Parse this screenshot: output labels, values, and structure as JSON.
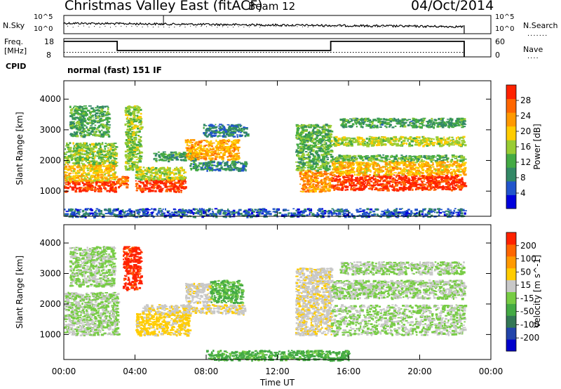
{
  "header": {
    "title": "Christmas Valley East (fitACF)",
    "beam": "Beam 12",
    "date": "04/Oct/2014"
  },
  "noise_panel": {
    "left_label": "N.Sky",
    "right_label": "N.Search",
    "left_ticks": [
      "10^5",
      "10^0"
    ],
    "right_ticks": [
      "10^5",
      "10^0"
    ]
  },
  "freq_panel": {
    "left_label_1": "Freq.",
    "left_label_2": "[MHz]",
    "right_label": "Nave",
    "left_ticks": [
      "18",
      "8"
    ],
    "right_ticks": [
      "60",
      "0"
    ]
  },
  "cpid": {
    "label": "CPID",
    "value": "normal (fast) 151 IF"
  },
  "chart_data": [
    {
      "type": "heatmap",
      "name": "power",
      "ylabel": "Slant Range [km]",
      "yticks": [
        1000,
        2000,
        3000,
        4000
      ],
      "ylim": [
        180,
        4600
      ],
      "colorbar_label": "Power [dB]",
      "colorbar_ticks": [
        "4",
        "8",
        "12",
        "16",
        "20",
        "24",
        "28"
      ],
      "colorbar_colors": [
        "#0000dd",
        "#2255cc",
        "#338866",
        "#44aa44",
        "#99cc33",
        "#ffcc00",
        "#ff9900",
        "#ff6600",
        "#ff2200"
      ],
      "colorbar_range": [
        0,
        32
      ],
      "bands": [
        {
          "t0": 0.0,
          "t1": 2.9,
          "r0": 1000,
          "r1": 1350,
          "v": 29
        },
        {
          "t0": 0.0,
          "t1": 2.9,
          "r0": 1350,
          "r1": 1900,
          "v": 20
        },
        {
          "t0": 0.0,
          "t1": 2.9,
          "r0": 1900,
          "r1": 2600,
          "v": 15
        },
        {
          "t0": 0.3,
          "t1": 2.5,
          "r0": 2800,
          "r1": 3800,
          "v": 12
        },
        {
          "t0": 2.9,
          "t1": 3.6,
          "r0": 1150,
          "r1": 1500,
          "v": 26
        },
        {
          "t0": 3.4,
          "t1": 4.3,
          "r0": 1700,
          "r1": 3800,
          "v": 15
        },
        {
          "t0": 4.0,
          "t1": 6.8,
          "r0": 1000,
          "r1": 1400,
          "v": 30
        },
        {
          "t0": 4.0,
          "t1": 6.8,
          "r0": 1400,
          "r1": 1800,
          "v": 17
        },
        {
          "t0": 5.0,
          "t1": 7.5,
          "r0": 2000,
          "r1": 2300,
          "v": 11
        },
        {
          "t0": 6.8,
          "t1": 9.8,
          "r0": 2050,
          "r1": 2700,
          "v": 22
        },
        {
          "t0": 7.0,
          "t1": 10.2,
          "r0": 1700,
          "r1": 2000,
          "v": 10
        },
        {
          "t0": 7.8,
          "t1": 10.3,
          "r0": 2800,
          "r1": 3200,
          "v": 8
        },
        {
          "t0": 13.2,
          "t1": 15.0,
          "r0": 1000,
          "r1": 1700,
          "v": 24
        },
        {
          "t0": 13.0,
          "t1": 15.0,
          "r0": 1700,
          "r1": 3200,
          "v": 13
        },
        {
          "t0": 15.0,
          "t1": 22.5,
          "r0": 1050,
          "r1": 1550,
          "v": 30
        },
        {
          "t0": 15.0,
          "t1": 22.5,
          "r0": 1550,
          "r1": 2000,
          "v": 21
        },
        {
          "t0": 15.0,
          "t1": 22.5,
          "r0": 2000,
          "r1": 2200,
          "v": 13
        },
        {
          "t0": 15.0,
          "t1": 22.5,
          "r0": 2500,
          "r1": 2800,
          "v": 17
        },
        {
          "t0": 15.5,
          "t1": 22.5,
          "r0": 3100,
          "r1": 3400,
          "v": 11
        },
        {
          "t0": 0.0,
          "t1": 22.5,
          "r0": 180,
          "r1": 450,
          "v": 6
        }
      ]
    },
    {
      "type": "heatmap",
      "name": "velocity",
      "xlabel": "Time UT",
      "ylabel": "Slant Range [km]",
      "xticks": [
        "00:00",
        "04:00",
        "08:00",
        "12:00",
        "16:00",
        "20:00",
        "00:00"
      ],
      "yticks": [
        1000,
        2000,
        3000,
        4000
      ],
      "ylim": [
        180,
        4600
      ],
      "colorbar_label": "Velocity [m s^-1]",
      "colorbar_ticks": [
        "200",
        "100",
        "50",
        "15",
        "-15",
        "-50",
        "-100",
        "-200"
      ],
      "colorbar_colors": [
        "#0000cc",
        "#2244aa",
        "#337755",
        "#44aa44",
        "#77cc44",
        "#c8c8c8",
        "#ffcc00",
        "#ff9900",
        "#ff6600",
        "#ff2200"
      ],
      "colorbar_range": [
        -250,
        250
      ],
      "bands": [
        {
          "t0": 0.0,
          "t1": 3.0,
          "r0": 1000,
          "r1": 2400,
          "v": 0
        },
        {
          "t0": 0.3,
          "t1": 2.8,
          "r0": 2600,
          "r1": 3900,
          "v": -5
        },
        {
          "t0": 3.3,
          "t1": 4.3,
          "r0": 2500,
          "r1": 3900,
          "v": 220
        },
        {
          "t0": 4.0,
          "t1": 7.0,
          "r0": 1000,
          "r1": 1700,
          "v": 70
        },
        {
          "t0": 4.3,
          "t1": 10.2,
          "r0": 1700,
          "r1": 2000,
          "v": 45
        },
        {
          "t0": 6.8,
          "t1": 8.2,
          "r0": 2050,
          "r1": 2700,
          "v": 30
        },
        {
          "t0": 8.2,
          "t1": 10.0,
          "r0": 2050,
          "r1": 2800,
          "v": -60
        },
        {
          "t0": 13.0,
          "t1": 15.0,
          "r0": 1000,
          "r1": 3200,
          "v": 35
        },
        {
          "t0": 15.0,
          "t1": 22.5,
          "r0": 1000,
          "r1": 2000,
          "v": 0
        },
        {
          "t0": 15.0,
          "t1": 22.5,
          "r0": 2200,
          "r1": 2800,
          "v": 0
        },
        {
          "t0": 15.5,
          "t1": 22.5,
          "r0": 3000,
          "r1": 3400,
          "v": 0
        },
        {
          "t0": 8.0,
          "t1": 16.0,
          "r0": 180,
          "r1": 500,
          "v": -70
        }
      ]
    }
  ]
}
